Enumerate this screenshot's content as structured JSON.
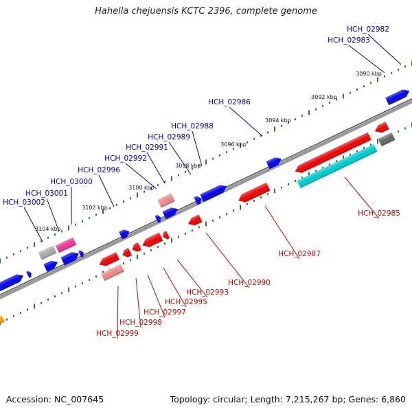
{
  "title": "Hahella chejuensis KCTC 2396, complete genome",
  "footer": {
    "accession": "Accession: NC_007645",
    "summary": "Topology: circular; Length: 7,215,267 bp; Genes: 6,860"
  },
  "colors": {
    "backbone": "#808080",
    "tick": "#2e7d2e",
    "forward_label": "#0000cc",
    "reverse_label": "#cc0000",
    "blue_gene": "#0000ee",
    "red_gene": "#ee0000",
    "pink_gene": "#ee3399",
    "salmon_gene": "#ee8888",
    "grey_gene": "#aaaaaa",
    "darkgrey_gene": "#666666",
    "cyan_gene": "#00cccc",
    "orange_gene": "#ff9900"
  },
  "scale_labels": [
    "3090 kbp",
    "3092 kbp",
    "3094 kbp",
    "3096 kbp",
    "3098 kbp",
    "3100 kbp",
    "3102 kbp",
    "3104 kbp"
  ],
  "forward_labels": [
    "HCH_02982",
    "HCH_02983",
    "HCH_02986",
    "HCH_02988",
    "HCH_02989",
    "HCH_02991",
    "HCH_02992",
    "HCH_02996",
    "HCH_03000",
    "HCH_03001",
    "HCH_03002"
  ],
  "reverse_labels": [
    "HCH_02985",
    "HCH_02987",
    "HCH_02990",
    "HCH_02993",
    "HCH_02995",
    "HCH_02997",
    "HCH_02998",
    "HCH_02999"
  ]
}
